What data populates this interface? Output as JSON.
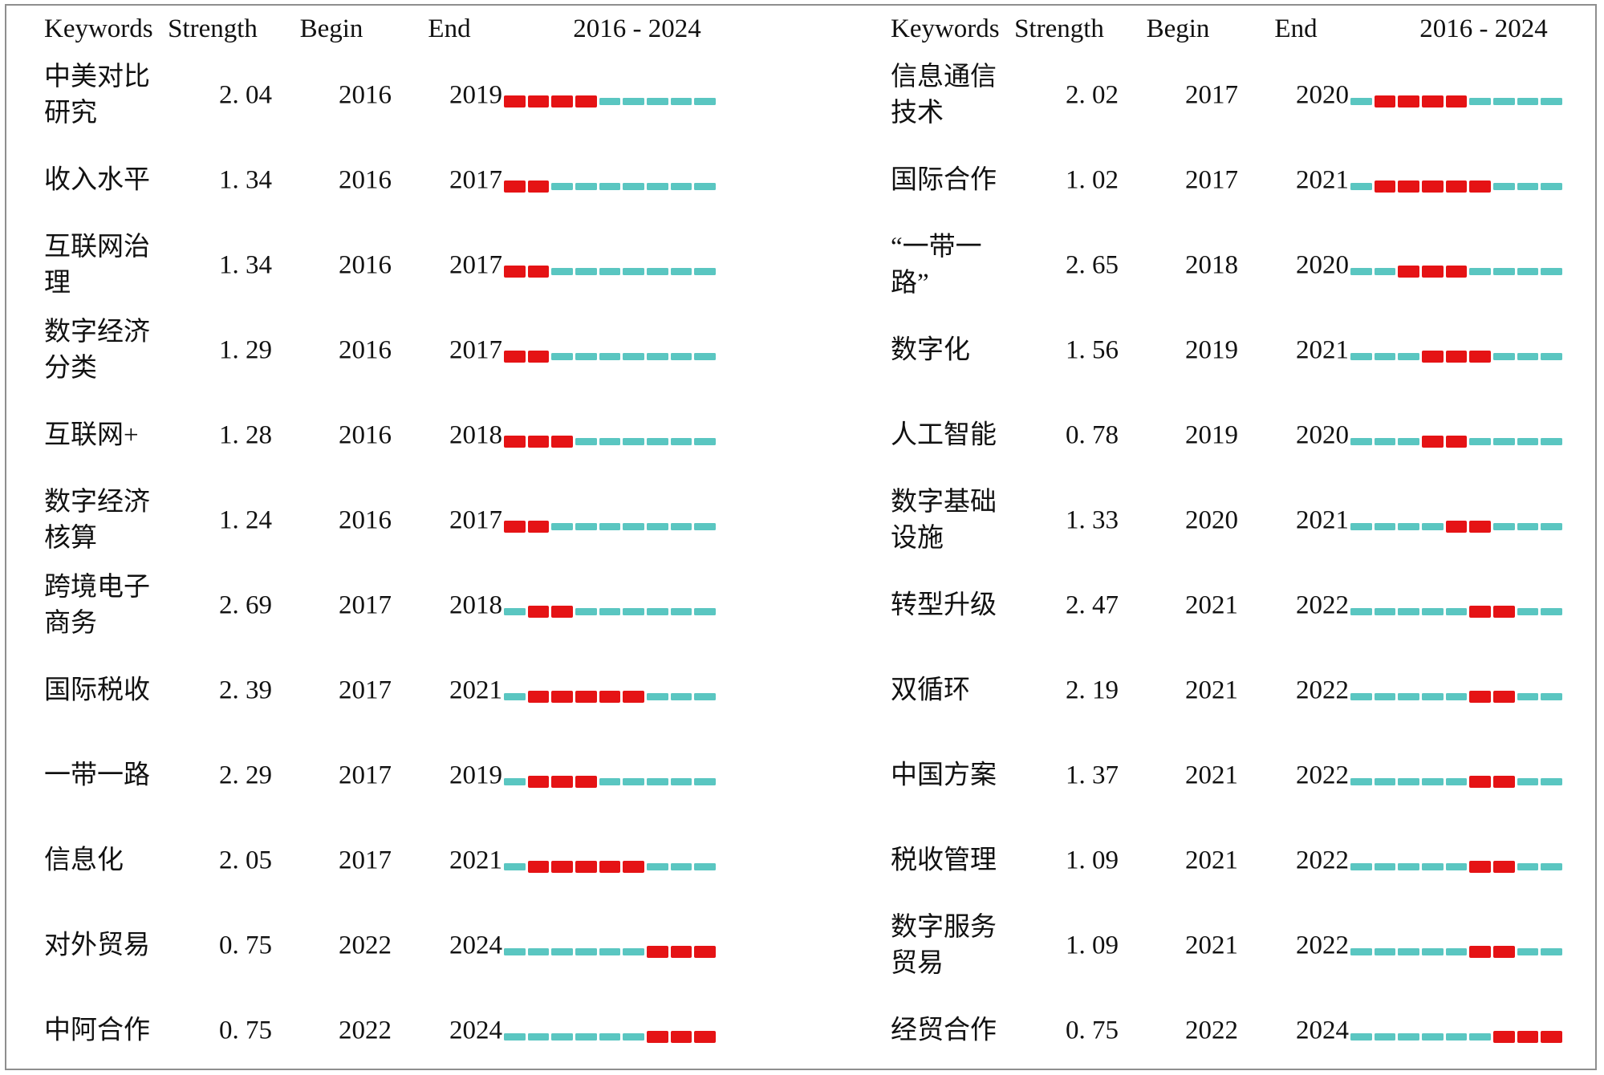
{
  "header": {
    "keywords": "Keywords",
    "strength": "Strength",
    "begin": "Begin",
    "end": "End",
    "range": "2016 - 2024"
  },
  "colors": {
    "burst_red": "#E51315",
    "baseline_cyan": "#5AC6C1"
  },
  "chart_data": {
    "type": "table",
    "columns": [
      "Keywords",
      "Strength",
      "Begin",
      "End",
      "2016 - 2024"
    ],
    "year_start": 2016,
    "year_end": 2024,
    "left_table": {
      "rows": [
        {
          "keyword": "中美对比研究",
          "strength": 2.04,
          "begin": 2016,
          "end": 2019
        },
        {
          "keyword": "收入水平",
          "strength": 1.34,
          "begin": 2016,
          "end": 2017
        },
        {
          "keyword": "互联网治理",
          "strength": 1.34,
          "begin": 2016,
          "end": 2017
        },
        {
          "keyword": "数字经济分类",
          "strength": 1.29,
          "begin": 2016,
          "end": 2017
        },
        {
          "keyword": "互联网+",
          "strength": 1.28,
          "begin": 2016,
          "end": 2018
        },
        {
          "keyword": "数字经济核算",
          "strength": 1.24,
          "begin": 2016,
          "end": 2017
        },
        {
          "keyword": "跨境电子商务",
          "strength": 2.69,
          "begin": 2017,
          "end": 2018
        },
        {
          "keyword": "国际税收",
          "strength": 2.39,
          "begin": 2017,
          "end": 2021
        },
        {
          "keyword": "一带一路",
          "strength": 2.29,
          "begin": 2017,
          "end": 2019
        },
        {
          "keyword": "信息化",
          "strength": 2.05,
          "begin": 2017,
          "end": 2021
        },
        {
          "keyword": "对外贸易",
          "strength": 0.75,
          "begin": 2022,
          "end": 2024
        },
        {
          "keyword": "中阿合作",
          "strength": 0.75,
          "begin": 2022,
          "end": 2024
        }
      ]
    },
    "right_table": {
      "rows": [
        {
          "keyword": "信息通信技术",
          "strength": 2.02,
          "begin": 2017,
          "end": 2020
        },
        {
          "keyword": "国际合作",
          "strength": 1.02,
          "begin": 2017,
          "end": 2021
        },
        {
          "keyword": "“一带一路”",
          "strength": 2.65,
          "begin": 2018,
          "end": 2020
        },
        {
          "keyword": "数字化",
          "strength": 1.56,
          "begin": 2019,
          "end": 2021
        },
        {
          "keyword": "人工智能",
          "strength": 0.78,
          "begin": 2019,
          "end": 2020
        },
        {
          "keyword": "数字基础设施",
          "strength": 1.33,
          "begin": 2020,
          "end": 2021
        },
        {
          "keyword": "转型升级",
          "strength": 2.47,
          "begin": 2021,
          "end": 2022
        },
        {
          "keyword": "双循环",
          "strength": 2.19,
          "begin": 2021,
          "end": 2022
        },
        {
          "keyword": "中国方案",
          "strength": 1.37,
          "begin": 2021,
          "end": 2022
        },
        {
          "keyword": "税收管理",
          "strength": 1.09,
          "begin": 2021,
          "end": 2022
        },
        {
          "keyword": "数字服务贸易",
          "strength": 1.09,
          "begin": 2021,
          "end": 2022
        },
        {
          "keyword": "经贸合作",
          "strength": 0.75,
          "begin": 2022,
          "end": 2024
        }
      ]
    }
  }
}
